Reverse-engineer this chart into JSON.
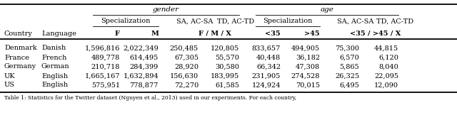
{
  "rows": [
    [
      "Denmark",
      "Danish",
      "1,596,816",
      "2,022,349",
      "250,485",
      "120,805",
      "833,657",
      "494,905",
      "75,300",
      "44,815"
    ],
    [
      "France",
      "French",
      "489,778",
      "614,495",
      "67,305",
      "55,570",
      "40,448",
      "36,182",
      "6,570",
      "6,120"
    ],
    [
      "Germany",
      "German",
      "210,718",
      "284,399",
      "28,920",
      "30,580",
      "66,342",
      "47,308",
      "5,865",
      "8,040"
    ],
    [
      "UK",
      "English",
      "1,665,167",
      "1,632,894",
      "156,630",
      "183,995",
      "231,905",
      "274,528",
      "26,325",
      "22,095"
    ],
    [
      "US",
      "English",
      "575,951",
      "778,877",
      "72,270",
      "61,585",
      "124,924",
      "70,015",
      "6,495",
      "12,090"
    ]
  ],
  "bg_color": "#ffffff",
  "text_color": "#000000",
  "font_size": 7.0,
  "caption": "Table 1: Statistics for the Twitter dataset (Nguyen et al., 2013) used in our experiments. For each country,"
}
